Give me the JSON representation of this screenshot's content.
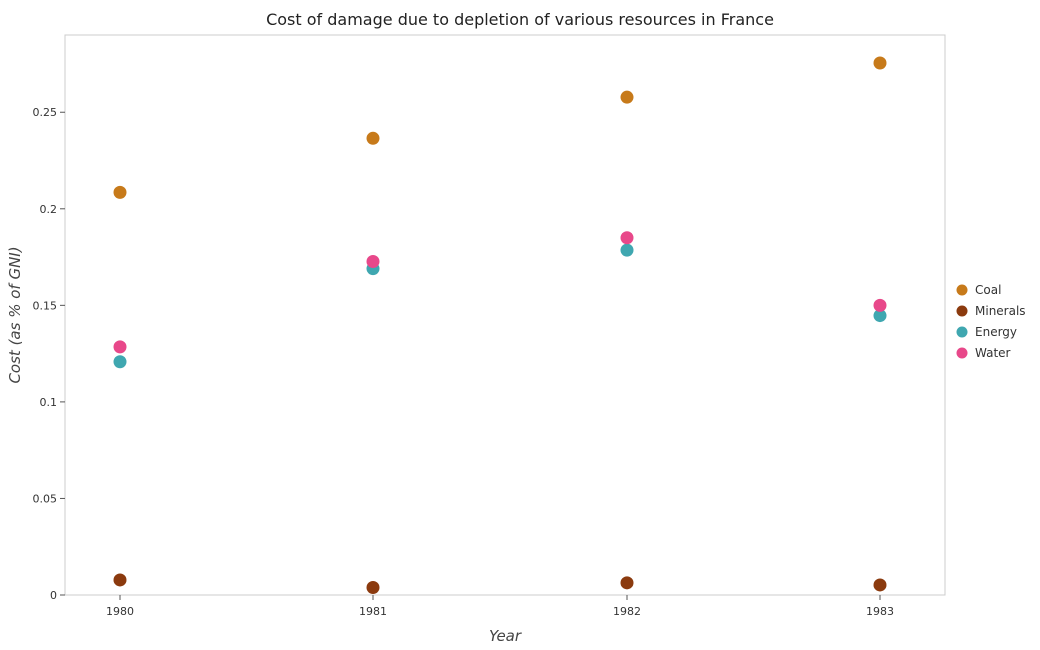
{
  "chart_data": {
    "type": "scatter",
    "title": "Cost of damage due to depletion of various resources in France",
    "xlabel": "Year",
    "ylabel": "Cost (as % of GNI)",
    "categories": [
      "1980",
      "1981",
      "1982",
      "1983"
    ],
    "ylim": [
      0,
      0.29
    ],
    "yticks": [
      0,
      0.05,
      0.1,
      0.15,
      0.2,
      0.25
    ],
    "ytick_labels": [
      "0",
      "0.05",
      "0.1",
      "0.15",
      "0.2",
      "0.25"
    ],
    "grid": false,
    "legend_position": "right",
    "series": [
      {
        "name": "Coal",
        "color": "#c77a1a",
        "values": [
          0.2085,
          0.2365,
          0.2578,
          0.2755
        ]
      },
      {
        "name": "Minerals",
        "color": "#8b3a0e",
        "values": [
          0.0078,
          0.0039,
          0.0063,
          0.0052
        ]
      },
      {
        "name": "Energy",
        "color": "#3fa7b0",
        "values": [
          0.1208,
          0.169,
          0.1786,
          0.1447
        ]
      },
      {
        "name": "Water",
        "color": "#e8488a",
        "values": [
          0.1285,
          0.1727,
          0.185,
          0.15
        ]
      }
    ]
  }
}
